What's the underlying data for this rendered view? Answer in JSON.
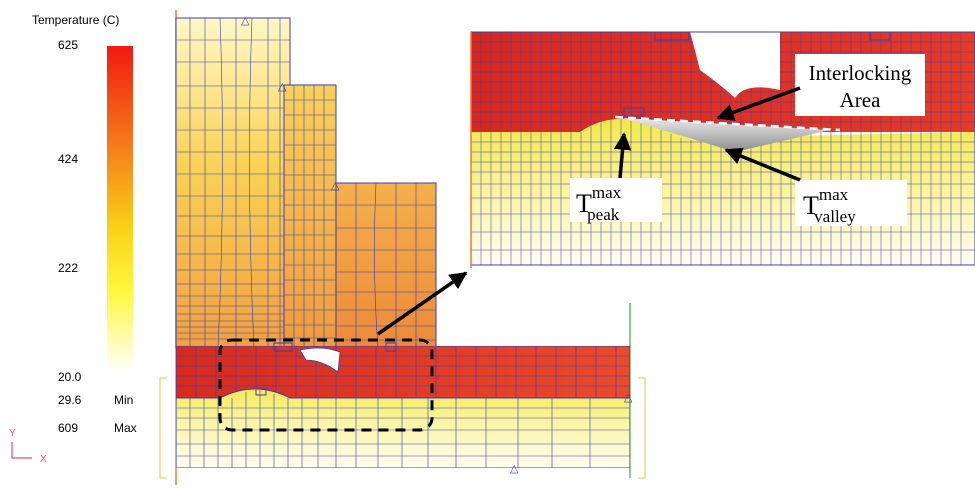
{
  "legend": {
    "title": "Temperature (C)",
    "ticks": [
      "625",
      "424",
      "222",
      "20.0"
    ],
    "min_value": "29.6",
    "min_label": "Min",
    "max_value": "609",
    "max_label": "Max",
    "gradient_colors": [
      "#f21a0f",
      "#f57a1a",
      "#f9cf16",
      "#fff83a",
      "#ffffff"
    ]
  },
  "axes_triad": {
    "y_label": "Y",
    "x_label": "X",
    "color": "#f04a6a"
  },
  "callouts": {
    "interlocking_line1": "Interlocking",
    "interlocking_line2": "Area",
    "peak_base": "T",
    "peak_sup": "max",
    "peak_sub": "peak",
    "valley_base": "T",
    "valley_sup": "max",
    "valley_sub": "valley"
  },
  "colors": {
    "mesh_line": "#3c3cb4",
    "hot": "#dc3022",
    "warm": "#f0a040",
    "yellow": "#f5ef6a",
    "cool": "#fffbe0",
    "highlight_box": "#000000",
    "interlock_fill": "#b0b0b0"
  }
}
